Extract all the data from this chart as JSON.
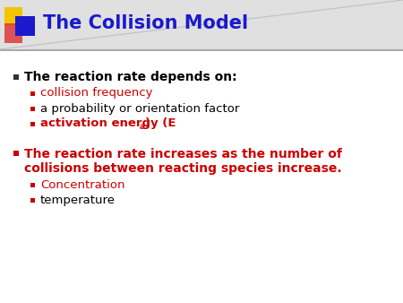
{
  "title": "The Collision Model",
  "title_color": "#1a1acc",
  "background_color": "#ffffff",
  "bullet_color": "#cc0000",
  "bullet1_text": "The reaction rate depends on:",
  "bullet1_color": "#000000",
  "sub_bullets_1": [
    {
      "text": "collision frequency",
      "color": "#cc0000",
      "bold": false,
      "has_subscript": false
    },
    {
      "text": "a probability or orientation factor",
      "color": "#000000",
      "bold": false,
      "has_subscript": false
    },
    {
      "text": "activation energy (E",
      "suffix": "a",
      "after": ")",
      "color": "#cc0000",
      "bold": true,
      "has_subscript": true
    }
  ],
  "bullet2_line1": "The reaction rate increases as the number of",
  "bullet2_line2": "collisions between reacting species increase.",
  "bullet2_color": "#cc0000",
  "sub_bullets_2": [
    {
      "text": "Concentration",
      "color": "#cc0000",
      "bold": false
    },
    {
      "text": "temperature",
      "color": "#000000",
      "bold": false
    }
  ],
  "accent_yellow": "#f5c400",
  "accent_red": "#dd2222",
  "accent_blue": "#1a1acc",
  "header_bg": "#e0e0e0",
  "divider_color": "#aaaaaa"
}
